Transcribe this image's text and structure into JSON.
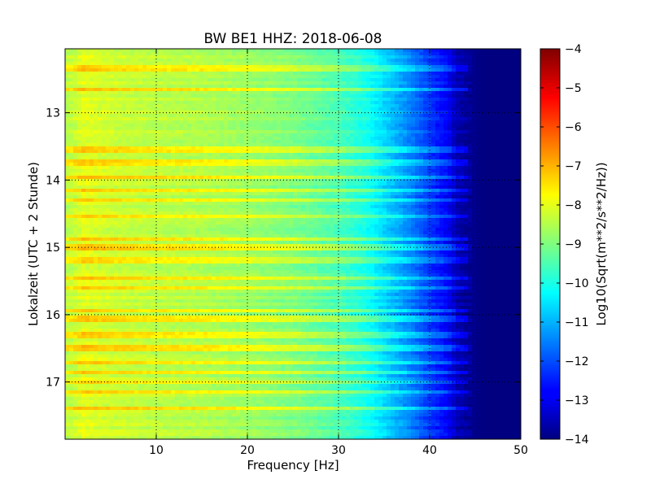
{
  "chart_data": {
    "type": "heatmap",
    "title": "BW BE1 HHZ: 2018-06-08",
    "xlabel": "Frequency [Hz]",
    "ylabel": "Lokalzeit (UTC + 2 Stunde)",
    "xlim": [
      0,
      50
    ],
    "ylim": [
      12.05,
      17.85
    ],
    "y_inverted": true,
    "x_ticks": [
      10,
      20,
      30,
      40,
      50
    ],
    "y_ticks": [
      13,
      14,
      15,
      16,
      17
    ],
    "grid": true,
    "colorbar": {
      "label": "Log10(Sqrt(m**2/s**2/Hz))",
      "colormap": "jet",
      "range": [
        -14,
        -4
      ],
      "ticks": [
        -4,
        -5,
        -6,
        -7,
        -8,
        -9,
        -10,
        -11,
        -12,
        -13,
        -14
      ]
    },
    "frequency_profile": {
      "frequency_hz": [
        0.5,
        2,
        5,
        10,
        15,
        20,
        25,
        30,
        33,
        35,
        38,
        40,
        42,
        43,
        45,
        46,
        48,
        50
      ],
      "log10_amplitude": [
        -8.4,
        -8.0,
        -8.2,
        -8.4,
        -8.5,
        -8.7,
        -9.0,
        -9.5,
        -10.0,
        -10.6,
        -11.5,
        -12.2,
        -12.8,
        -13.5,
        -13.9,
        -14,
        -14,
        -14
      ]
    },
    "bright_bands_hours": [
      12.35,
      12.65,
      13.55,
      13.75,
      13.95,
      14.15,
      14.3,
      14.55,
      14.88,
      15.0,
      15.2,
      15.45,
      15.6,
      15.95,
      16.05,
      16.3,
      16.5,
      16.72,
      16.85,
      17.0,
      17.15,
      17.4
    ]
  }
}
